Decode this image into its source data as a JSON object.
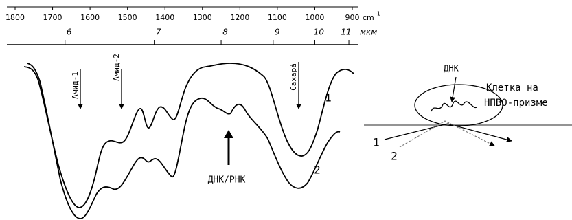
{
  "top_axis": {
    "wavenumber_ticks": [
      1800,
      1700,
      1600,
      1500,
      1400,
      1300,
      1200,
      1100,
      1000,
      900
    ],
    "wavenumber_unit": "cm",
    "wavenumber_unit_exponent": "-1",
    "micron_ticks": [
      6,
      7,
      8,
      9,
      10,
      11
    ],
    "micron_unit": "мкм"
  },
  "annotations": {
    "amide1": "Амид-1",
    "amide2": "Амид-2",
    "sugar": "Сахара́",
    "dna_rna": "ДНК/РНК",
    "curve1": "1",
    "curve2": "2"
  },
  "scheme": {
    "dna": "ДНК",
    "cell_line1": "Клетка на",
    "cell_line2": "НПВО-призме",
    "ray1": "1",
    "ray2": "2"
  }
}
